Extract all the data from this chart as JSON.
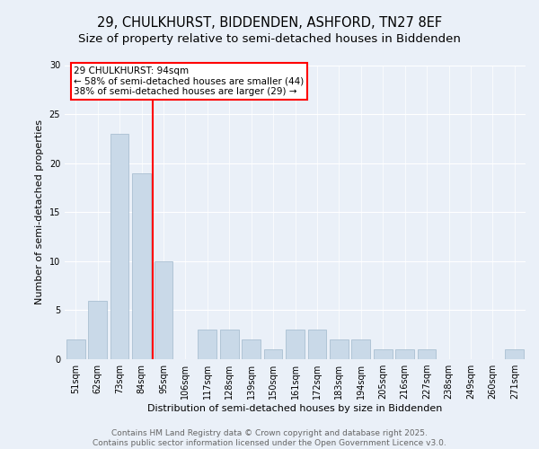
{
  "title_line1": "29, CHULKHURST, BIDDENDEN, ASHFORD, TN27 8EF",
  "title_line2": "Size of property relative to semi-detached houses in Biddenden",
  "xlabel": "Distribution of semi-detached houses by size in Biddenden",
  "ylabel": "Number of semi-detached properties",
  "categories": [
    "51sqm",
    "62sqm",
    "73sqm",
    "84sqm",
    "95sqm",
    "106sqm",
    "117sqm",
    "128sqm",
    "139sqm",
    "150sqm",
    "161sqm",
    "172sqm",
    "183sqm",
    "194sqm",
    "205sqm",
    "216sqm",
    "227sqm",
    "238sqm",
    "249sqm",
    "260sqm",
    "271sqm"
  ],
  "values": [
    2,
    6,
    23,
    19,
    10,
    0,
    3,
    3,
    2,
    1,
    3,
    3,
    2,
    2,
    1,
    1,
    1,
    0,
    0,
    0,
    1
  ],
  "bar_color": "#c9d9e8",
  "bar_edge_color": "#a0b8cc",
  "annotation_text": "29 CHULKHURST: 94sqm\n← 58% of semi-detached houses are smaller (44)\n38% of semi-detached houses are larger (29) →",
  "annotation_box_color": "white",
  "annotation_box_edge_color": "red",
  "vline_color": "red",
  "vline_x_index": 4,
  "ylim": [
    0,
    30
  ],
  "yticks": [
    0,
    5,
    10,
    15,
    20,
    25,
    30
  ],
  "background_color": "#eaf0f8",
  "plot_background": "#eaf0f8",
  "footer_text": "Contains HM Land Registry data © Crown copyright and database right 2025.\nContains public sector information licensed under the Open Government Licence v3.0.",
  "title_fontsize": 10.5,
  "subtitle_fontsize": 9.5,
  "label_fontsize": 8,
  "tick_fontsize": 7,
  "footer_fontsize": 6.5,
  "annotation_fontsize": 7.5
}
